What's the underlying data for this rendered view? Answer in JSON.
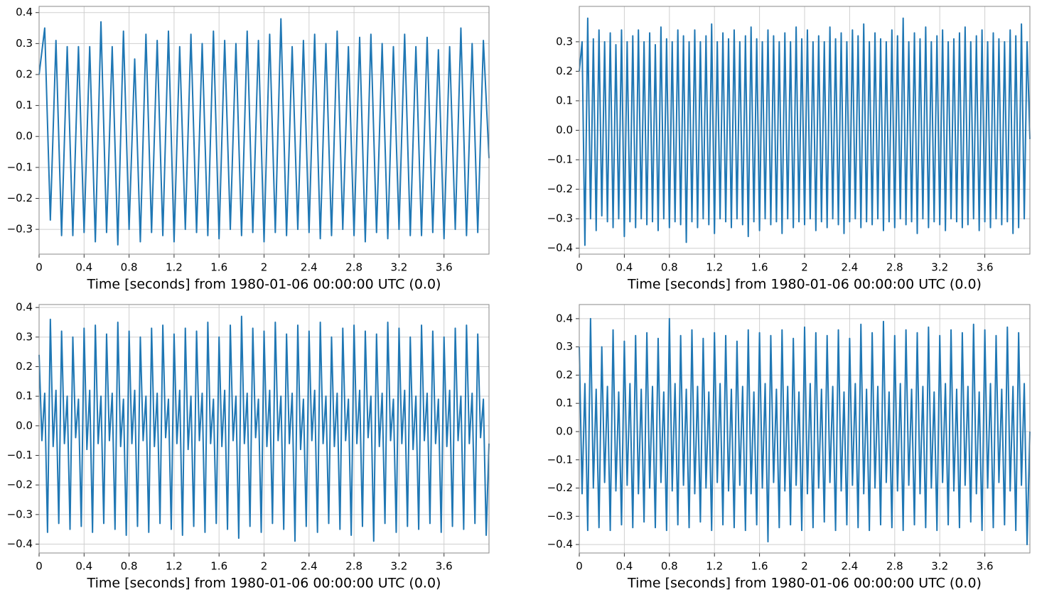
{
  "chart_data": [
    {
      "type": "line",
      "color": "#1f77b4",
      "grid": true,
      "xlabel": "Time [seconds] from 1980-01-06 00:00:00 UTC (0.0)",
      "xlim": [
        0,
        4
      ],
      "xticks": [
        0,
        0.4,
        0.8,
        1.2,
        1.6,
        2,
        2.4,
        2.8,
        3.2,
        3.6
      ],
      "ylim": [
        -0.38,
        0.42
      ],
      "yticks": [
        {
          "value": -0.3,
          "label": "−0.3"
        },
        {
          "value": -0.2,
          "label": "−0.2"
        },
        {
          "value": -0.1,
          "label": "−0.1"
        },
        {
          "value": 0,
          "label": "0.0"
        },
        0.1,
        0.2,
        0.3,
        0.4
      ],
      "x": [
        0,
        0.05,
        0.1,
        0.15,
        0.2,
        0.25,
        0.3,
        0.35,
        0.4,
        0.45,
        0.5,
        0.55,
        0.6,
        0.65,
        0.7,
        0.75,
        0.8,
        0.85,
        0.9,
        0.95,
        1,
        1.05,
        1.1,
        1.15,
        1.2,
        1.25,
        1.3,
        1.35,
        1.4,
        1.45,
        1.5,
        1.55,
        1.6,
        1.65,
        1.7,
        1.75,
        1.8,
        1.85,
        1.9,
        1.95,
        2,
        2.05,
        2.1,
        2.15,
        2.2,
        2.25,
        2.3,
        2.35,
        2.4,
        2.45,
        2.5,
        2.55,
        2.6,
        2.65,
        2.7,
        2.75,
        2.8,
        2.85,
        2.9,
        2.95,
        3,
        3.05,
        3.1,
        3.15,
        3.2,
        3.25,
        3.3,
        3.35,
        3.4,
        3.45,
        3.5,
        3.55,
        3.6,
        3.65,
        3.7,
        3.75,
        3.8,
        3.85,
        3.9,
        3.95,
        4
      ],
      "values": [
        0.2,
        0.35,
        -0.27,
        0.31,
        -0.32,
        0.29,
        -0.32,
        0.29,
        -0.31,
        0.29,
        -0.34,
        0.37,
        -0.31,
        0.29,
        -0.35,
        0.34,
        -0.3,
        0.25,
        -0.34,
        0.33,
        -0.31,
        0.31,
        -0.32,
        0.34,
        -0.34,
        0.29,
        -0.3,
        0.33,
        -0.31,
        0.3,
        -0.32,
        0.34,
        -0.33,
        0.31,
        -0.3,
        0.3,
        -0.32,
        0.34,
        -0.31,
        0.31,
        -0.34,
        0.33,
        -0.31,
        0.38,
        -0.32,
        0.29,
        -0.3,
        0.31,
        -0.31,
        0.33,
        -0.33,
        0.3,
        -0.32,
        0.34,
        -0.3,
        0.29,
        -0.32,
        0.32,
        -0.34,
        0.33,
        -0.31,
        0.3,
        -0.33,
        0.29,
        -0.3,
        0.33,
        -0.32,
        0.29,
        -0.32,
        0.32,
        -0.31,
        0.28,
        -0.33,
        0.29,
        -0.3,
        0.35,
        -0.32,
        0.3,
        -0.31,
        0.31,
        -0.07
      ]
    },
    {
      "type": "line",
      "color": "#1f77b4",
      "grid": true,
      "xlabel": "Time [seconds] from 1980-01-06 00:00:00 UTC (0.0)",
      "xlim": [
        0,
        4
      ],
      "xticks": [
        0,
        0.4,
        0.8,
        1.2,
        1.6,
        2,
        2.4,
        2.8,
        3.2,
        3.6
      ],
      "ylim": [
        -0.42,
        0.42
      ],
      "yticks": [
        {
          "value": -0.4,
          "label": "−0.4"
        },
        {
          "value": -0.3,
          "label": "−0.3"
        },
        {
          "value": -0.2,
          "label": "−0.2"
        },
        {
          "value": -0.1,
          "label": "−0.1"
        },
        {
          "value": 0,
          "label": "0.0"
        },
        0.1,
        0.2,
        0.3
      ],
      "x": [
        0,
        0.025,
        0.05,
        0.075,
        0.1,
        0.125,
        0.15,
        0.175,
        0.2,
        0.225,
        0.25,
        0.275,
        0.3,
        0.325,
        0.35,
        0.375,
        0.4,
        0.425,
        0.45,
        0.475,
        0.5,
        0.525,
        0.55,
        0.575,
        0.6,
        0.625,
        0.65,
        0.675,
        0.7,
        0.725,
        0.75,
        0.775,
        0.8,
        0.825,
        0.85,
        0.875,
        0.9,
        0.925,
        0.95,
        0.975,
        1,
        1.025,
        1.05,
        1.075,
        1.1,
        1.125,
        1.15,
        1.175,
        1.2,
        1.225,
        1.25,
        1.275,
        1.3,
        1.325,
        1.35,
        1.375,
        1.4,
        1.425,
        1.45,
        1.475,
        1.5,
        1.525,
        1.55,
        1.575,
        1.6,
        1.625,
        1.65,
        1.675,
        1.7,
        1.725,
        1.75,
        1.775,
        1.8,
        1.825,
        1.85,
        1.875,
        1.9,
        1.925,
        1.95,
        1.975,
        2,
        2.025,
        2.05,
        2.075,
        2.1,
        2.125,
        2.15,
        2.175,
        2.2,
        2.225,
        2.25,
        2.275,
        2.3,
        2.325,
        2.35,
        2.375,
        2.4,
        2.425,
        2.45,
        2.475,
        2.5,
        2.525,
        2.55,
        2.575,
        2.6,
        2.625,
        2.65,
        2.675,
        2.7,
        2.725,
        2.75,
        2.775,
        2.8,
        2.825,
        2.85,
        2.875,
        2.9,
        2.925,
        2.95,
        2.975,
        3,
        3.025,
        3.05,
        3.075,
        3.1,
        3.125,
        3.15,
        3.175,
        3.2,
        3.225,
        3.25,
        3.275,
        3.3,
        3.325,
        3.35,
        3.375,
        3.4,
        3.425,
        3.45,
        3.475,
        3.5,
        3.525,
        3.55,
        3.575,
        3.6,
        3.625,
        3.65,
        3.675,
        3.7,
        3.725,
        3.75,
        3.775,
        3.8,
        3.825,
        3.85,
        3.875,
        3.9,
        3.925,
        3.95,
        3.975,
        4
      ],
      "values": [
        0.2,
        0.3,
        -0.39,
        0.38,
        -0.3,
        0.31,
        -0.34,
        0.34,
        -0.29,
        0.3,
        -0.31,
        0.33,
        -0.33,
        0.29,
        -0.3,
        0.34,
        -0.36,
        0.3,
        -0.31,
        0.32,
        -0.33,
        0.34,
        -0.3,
        0.3,
        -0.32,
        0.33,
        -0.31,
        0.29,
        -0.34,
        0.35,
        -0.3,
        0.31,
        -0.33,
        0.3,
        -0.31,
        0.34,
        -0.32,
        0.32,
        -0.38,
        0.3,
        -0.31,
        0.34,
        -0.33,
        0.3,
        -0.3,
        0.32,
        -0.32,
        0.36,
        -0.35,
        0.3,
        -0.3,
        0.33,
        -0.31,
        0.31,
        -0.33,
        0.34,
        -0.3,
        0.3,
        -0.32,
        0.32,
        -0.36,
        0.35,
        -0.31,
        0.31,
        -0.34,
        0.3,
        -0.3,
        0.34,
        -0.32,
        0.32,
        -0.31,
        0.3,
        -0.35,
        0.33,
        -0.3,
        0.3,
        -0.33,
        0.35,
        -0.31,
        0.31,
        -0.32,
        0.34,
        -0.3,
        0.3,
        -0.34,
        0.32,
        -0.31,
        0.3,
        -0.33,
        0.35,
        -0.3,
        0.31,
        -0.32,
        0.33,
        -0.35,
        0.3,
        -0.31,
        0.34,
        -0.3,
        0.32,
        -0.33,
        0.36,
        -0.31,
        0.3,
        -0.32,
        0.33,
        -0.3,
        0.31,
        -0.34,
        0.3,
        -0.31,
        0.34,
        -0.33,
        0.32,
        -0.3,
        0.38,
        -0.32,
        0.3,
        -0.31,
        0.33,
        -0.35,
        0.31,
        -0.3,
        0.35,
        -0.33,
        0.3,
        -0.31,
        0.32,
        -0.32,
        0.34,
        -0.34,
        0.3,
        -0.3,
        0.31,
        -0.31,
        0.33,
        -0.33,
        0.35,
        -0.32,
        0.3,
        -0.3,
        0.32,
        -0.34,
        0.34,
        -0.31,
        0.3,
        -0.33,
        0.33,
        -0.3,
        0.31,
        -0.32,
        0.3,
        -0.31,
        0.34,
        -0.35,
        0.32,
        -0.33,
        0.36,
        -0.3,
        0.3,
        -0.03
      ]
    },
    {
      "type": "line",
      "color": "#1f77b4",
      "grid": true,
      "xlabel": "Time [seconds] from 1980-01-06 00:00:00 UTC (0.0)",
      "xlim": [
        0,
        4
      ],
      "xticks": [
        0,
        0.4,
        0.8,
        1.2,
        1.6,
        2,
        2.4,
        2.8,
        3.2,
        3.6
      ],
      "ylim": [
        -0.43,
        0.41
      ],
      "yticks": [
        {
          "value": -0.4,
          "label": "−0.4"
        },
        {
          "value": -0.3,
          "label": "−0.3"
        },
        {
          "value": -0.2,
          "label": "−0.2"
        },
        {
          "value": -0.1,
          "label": "−0.1"
        },
        {
          "value": 0,
          "label": "0.0"
        },
        0.1,
        0.2,
        0.3,
        0.4
      ],
      "x": [
        0,
        0.025,
        0.05,
        0.075,
        0.1,
        0.125,
        0.15,
        0.175,
        0.2,
        0.225,
        0.25,
        0.275,
        0.3,
        0.325,
        0.35,
        0.375,
        0.4,
        0.425,
        0.45,
        0.475,
        0.5,
        0.525,
        0.55,
        0.575,
        0.6,
        0.625,
        0.65,
        0.675,
        0.7,
        0.725,
        0.75,
        0.775,
        0.8,
        0.825,
        0.85,
        0.875,
        0.9,
        0.925,
        0.95,
        0.975,
        1,
        1.025,
        1.05,
        1.075,
        1.1,
        1.125,
        1.15,
        1.175,
        1.2,
        1.225,
        1.25,
        1.275,
        1.3,
        1.325,
        1.35,
        1.375,
        1.4,
        1.425,
        1.45,
        1.475,
        1.5,
        1.525,
        1.55,
        1.575,
        1.6,
        1.625,
        1.65,
        1.675,
        1.7,
        1.725,
        1.75,
        1.775,
        1.8,
        1.825,
        1.85,
        1.875,
        1.9,
        1.925,
        1.95,
        1.975,
        2,
        2.025,
        2.05,
        2.075,
        2.1,
        2.125,
        2.15,
        2.175,
        2.2,
        2.225,
        2.25,
        2.275,
        2.3,
        2.325,
        2.35,
        2.375,
        2.4,
        2.425,
        2.45,
        2.475,
        2.5,
        2.525,
        2.55,
        2.575,
        2.6,
        2.625,
        2.65,
        2.675,
        2.7,
        2.725,
        2.75,
        2.775,
        2.8,
        2.825,
        2.85,
        2.875,
        2.9,
        2.925,
        2.95,
        2.975,
        3,
        3.025,
        3.05,
        3.075,
        3.1,
        3.125,
        3.15,
        3.175,
        3.2,
        3.225,
        3.25,
        3.275,
        3.3,
        3.325,
        3.35,
        3.375,
        3.4,
        3.425,
        3.45,
        3.475,
        3.5,
        3.525,
        3.55,
        3.575,
        3.6,
        3.625,
        3.65,
        3.675,
        3.7,
        3.725,
        3.75,
        3.775,
        3.8,
        3.825,
        3.85,
        3.875,
        3.9,
        3.925,
        3.95,
        3.975,
        4
      ],
      "values": [
        0.24,
        -0.05,
        0.11,
        -0.36,
        0.36,
        -0.07,
        0.12,
        -0.33,
        0.32,
        -0.06,
        0.1,
        -0.35,
        0.3,
        -0.04,
        0.09,
        -0.34,
        0.33,
        -0.08,
        0.12,
        -0.36,
        0.34,
        -0.06,
        0.1,
        -0.33,
        0.31,
        -0.05,
        0.11,
        -0.35,
        0.35,
        -0.07,
        0.09,
        -0.37,
        0.32,
        -0.06,
        0.12,
        -0.34,
        0.3,
        -0.05,
        0.1,
        -0.36,
        0.33,
        -0.07,
        0.11,
        -0.33,
        0.34,
        -0.04,
        0.09,
        -0.35,
        0.31,
        -0.06,
        0.12,
        -0.37,
        0.33,
        -0.08,
        0.1,
        -0.34,
        0.32,
        -0.05,
        0.11,
        -0.36,
        0.35,
        -0.06,
        0.09,
        -0.33,
        0.3,
        -0.07,
        0.12,
        -0.35,
        0.34,
        -0.05,
        0.1,
        -0.38,
        0.37,
        -0.06,
        0.11,
        -0.34,
        0.33,
        -0.04,
        0.09,
        -0.36,
        0.32,
        -0.07,
        0.12,
        -0.33,
        0.35,
        -0.05,
        0.1,
        -0.35,
        0.31,
        -0.06,
        0.11,
        -0.39,
        0.34,
        -0.08,
        0.09,
        -0.34,
        0.32,
        -0.05,
        0.12,
        -0.36,
        0.35,
        -0.06,
        0.1,
        -0.33,
        0.3,
        -0.07,
        0.11,
        -0.35,
        0.33,
        -0.05,
        0.09,
        -0.37,
        0.34,
        -0.06,
        0.12,
        -0.34,
        0.32,
        -0.04,
        0.1,
        -0.39,
        0.31,
        -0.07,
        0.11,
        -0.33,
        0.35,
        -0.05,
        0.09,
        -0.36,
        0.33,
        -0.06,
        0.12,
        -0.34,
        0.3,
        -0.08,
        0.1,
        -0.35,
        0.34,
        -0.05,
        0.11,
        -0.33,
        0.32,
        -0.06,
        0.09,
        -0.36,
        0.3,
        -0.07,
        0.12,
        -0.34,
        0.33,
        -0.05,
        0.1,
        -0.35,
        0.34,
        -0.06,
        0.11,
        -0.33,
        0.31,
        -0.04,
        0.09,
        -0.37,
        -0.06
      ]
    },
    {
      "type": "line",
      "color": "#1f77b4",
      "grid": true,
      "xlabel": "Time [seconds] from 1980-01-06 00:00:00 UTC (0.0)",
      "xlim": [
        0,
        4
      ],
      "xticks": [
        0,
        0.4,
        0.8,
        1.2,
        1.6,
        2,
        2.4,
        2.8,
        3.2,
        3.6
      ],
      "ylim": [
        -0.43,
        0.45
      ],
      "yticks": [
        {
          "value": -0.4,
          "label": "−0.4"
        },
        {
          "value": -0.3,
          "label": "−0.3"
        },
        {
          "value": -0.2,
          "label": "−0.2"
        },
        {
          "value": -0.1,
          "label": "−0.1"
        },
        {
          "value": 0,
          "label": "0.0"
        },
        0.1,
        0.2,
        0.3,
        0.4
      ],
      "x": [
        0,
        0.025,
        0.05,
        0.075,
        0.1,
        0.125,
        0.15,
        0.175,
        0.2,
        0.225,
        0.25,
        0.275,
        0.3,
        0.325,
        0.35,
        0.375,
        0.4,
        0.425,
        0.45,
        0.475,
        0.5,
        0.525,
        0.55,
        0.575,
        0.6,
        0.625,
        0.65,
        0.675,
        0.7,
        0.725,
        0.75,
        0.775,
        0.8,
        0.825,
        0.85,
        0.875,
        0.9,
        0.925,
        0.95,
        0.975,
        1,
        1.025,
        1.05,
        1.075,
        1.1,
        1.125,
        1.15,
        1.175,
        1.2,
        1.225,
        1.25,
        1.275,
        1.3,
        1.325,
        1.35,
        1.375,
        1.4,
        1.425,
        1.45,
        1.475,
        1.5,
        1.525,
        1.55,
        1.575,
        1.6,
        1.625,
        1.65,
        1.675,
        1.7,
        1.725,
        1.75,
        1.775,
        1.8,
        1.825,
        1.85,
        1.875,
        1.9,
        1.925,
        1.95,
        1.975,
        2,
        2.025,
        2.05,
        2.075,
        2.1,
        2.125,
        2.15,
        2.175,
        2.2,
        2.225,
        2.25,
        2.275,
        2.3,
        2.325,
        2.35,
        2.375,
        2.4,
        2.425,
        2.45,
        2.475,
        2.5,
        2.525,
        2.55,
        2.575,
        2.6,
        2.625,
        2.65,
        2.675,
        2.7,
        2.725,
        2.75,
        2.775,
        2.8,
        2.825,
        2.85,
        2.875,
        2.9,
        2.925,
        2.95,
        2.975,
        3,
        3.025,
        3.05,
        3.075,
        3.1,
        3.125,
        3.15,
        3.175,
        3.2,
        3.225,
        3.25,
        3.275,
        3.3,
        3.325,
        3.35,
        3.375,
        3.4,
        3.425,
        3.45,
        3.475,
        3.5,
        3.525,
        3.55,
        3.575,
        3.6,
        3.625,
        3.65,
        3.675,
        3.7,
        3.725,
        3.75,
        3.775,
        3.8,
        3.825,
        3.85,
        3.875,
        3.9,
        3.925,
        3.95,
        3.975,
        4
      ],
      "values": [
        0.3,
        -0.22,
        0.17,
        -0.35,
        0.4,
        -0.2,
        0.15,
        -0.34,
        0.3,
        -0.18,
        0.16,
        -0.35,
        0.36,
        -0.21,
        0.14,
        -0.33,
        0.32,
        -0.19,
        0.17,
        -0.34,
        0.34,
        -0.22,
        0.15,
        -0.32,
        0.35,
        -0.2,
        0.16,
        -0.34,
        0.33,
        -0.18,
        0.14,
        -0.35,
        0.4,
        -0.21,
        0.17,
        -0.33,
        0.34,
        -0.19,
        0.15,
        -0.34,
        0.36,
        -0.22,
        0.16,
        -0.32,
        0.33,
        -0.2,
        0.14,
        -0.35,
        0.35,
        -0.18,
        0.17,
        -0.33,
        0.34,
        -0.21,
        0.15,
        -0.34,
        0.32,
        -0.19,
        0.16,
        -0.35,
        0.36,
        -0.22,
        0.14,
        -0.33,
        0.35,
        -0.2,
        0.17,
        -0.39,
        0.34,
        -0.18,
        0.15,
        -0.34,
        0.36,
        -0.21,
        0.16,
        -0.33,
        0.33,
        -0.19,
        0.14,
        -0.35,
        0.37,
        -0.22,
        0.17,
        -0.34,
        0.35,
        -0.2,
        0.15,
        -0.32,
        0.34,
        -0.18,
        0.16,
        -0.35,
        0.36,
        -0.21,
        0.14,
        -0.33,
        0.33,
        -0.19,
        0.17,
        -0.34,
        0.38,
        -0.22,
        0.15,
        -0.35,
        0.35,
        -0.2,
        0.16,
        -0.33,
        0.39,
        -0.18,
        0.14,
        -0.34,
        0.34,
        -0.21,
        0.17,
        -0.35,
        0.36,
        -0.19,
        0.15,
        -0.33,
        0.35,
        -0.22,
        0.16,
        -0.34,
        0.37,
        -0.2,
        0.14,
        -0.35,
        0.34,
        -0.18,
        0.17,
        -0.33,
        0.36,
        -0.21,
        0.15,
        -0.34,
        0.35,
        -0.19,
        0.16,
        -0.32,
        0.38,
        -0.22,
        0.14,
        -0.35,
        0.36,
        -0.2,
        0.17,
        -0.34,
        0.34,
        -0.18,
        0.15,
        -0.33,
        0.37,
        -0.21,
        0.16,
        -0.35,
        0.35,
        -0.19,
        0.17,
        -0.4,
        0.0
      ]
    }
  ]
}
